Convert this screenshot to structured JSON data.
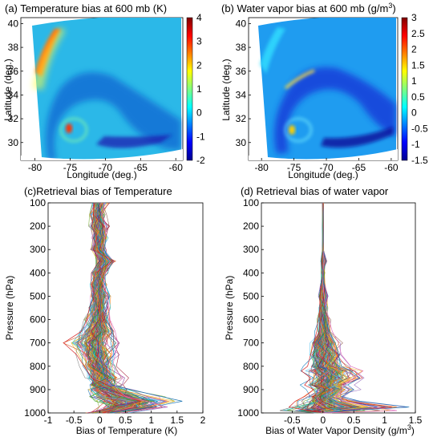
{
  "figure": {
    "panels": [
      {
        "id": "a",
        "title": "(a) Temperature bias at 600 mb (K)",
        "xlabel": "Longitude (deg.)",
        "ylabel": "Latitude (deg.)",
        "xticks": [
          "-80",
          "-75",
          "-70",
          "-65",
          "-60"
        ],
        "yticks": [
          "40",
          "38",
          "36",
          "34",
          "32",
          "30"
        ],
        "colorbar_ticks": [
          "4",
          "3",
          "2",
          "1",
          "0",
          "-1",
          "-2"
        ]
      },
      {
        "id": "b",
        "title_prefix": "(b) Water vapor bias at 600 mb (g/m",
        "title_sup": "3",
        "title_suffix": ")",
        "xlabel": "Longitude (deg.)",
        "ylabel": "Latitude (deg.)",
        "xticks": [
          "-80",
          "-75",
          "-70",
          "-65",
          "-60"
        ],
        "yticks": [
          "40",
          "38",
          "36",
          "34",
          "32",
          "30"
        ],
        "colorbar_ticks": [
          "3",
          "2.5",
          "2",
          "1.5",
          "1",
          "0.5",
          "0",
          "-0.5",
          "-1",
          "-1.5"
        ]
      },
      {
        "id": "c",
        "title": "(c)Retrieval bias of Temperature",
        "xlabel": "Bias of Temperature (K)",
        "ylabel": "Pressure (hPa)",
        "xticks": [
          "-1",
          "-0.5",
          "0",
          "0.5",
          "1",
          "1.5",
          "2"
        ],
        "yticks": [
          "100",
          "200",
          "300",
          "400",
          "500",
          "600",
          "700",
          "800",
          "900",
          "1000"
        ]
      },
      {
        "id": "d",
        "title": "(d) Retrieval bias of water vapor",
        "xlabel_prefix": "Bias of Water Vapor Density (g/m",
        "xlabel_sup": "3",
        "xlabel_suffix": ")",
        "ylabel": "Pressure (hPa)",
        "xticks": [
          "-0.5",
          "0",
          "0.5",
          "1",
          "1.5"
        ],
        "yticks": [
          "100",
          "200",
          "300",
          "400",
          "500",
          "600",
          "700",
          "800",
          "900",
          "1000"
        ]
      }
    ]
  },
  "chart_data": [
    {
      "type": "heatmap",
      "title": "(a) Temperature bias at 600 mb (K)",
      "xlabel": "Longitude (deg.)",
      "ylabel": "Latitude (deg.)",
      "xlim": [
        -82,
        -59
      ],
      "ylim": [
        28.5,
        40.5
      ],
      "colorbar": {
        "min": -2,
        "max": 4,
        "colormap": "jet"
      },
      "features": [
        {
          "kind": "warm coastal band",
          "lon": -79.5,
          "lat": 37,
          "value": 3.5
        },
        {
          "kind": "warm vortex core",
          "lon": -75.5,
          "lat": 31,
          "value": 3.0
        },
        {
          "kind": "background",
          "value": 0
        }
      ]
    },
    {
      "type": "heatmap",
      "title": "(b) Water vapor bias at 600 mb (g/m3)",
      "xlabel": "Longitude (deg.)",
      "ylabel": "Latitude (deg.)",
      "xlim": [
        -82,
        -59
      ],
      "ylim": [
        28.5,
        40.5
      ],
      "colorbar": {
        "min": -1.5,
        "max": 3,
        "colormap": "jet"
      },
      "features": [
        {
          "kind": "moist coastal band",
          "lon": -76.5,
          "lat": 36,
          "value": 1.5
        },
        {
          "kind": "moist vortex core",
          "lon": -75.5,
          "lat": 31,
          "value": 1.5
        },
        {
          "kind": "dry spiral band",
          "lon": -68,
          "lat": 32.5,
          "value": -1.2
        },
        {
          "kind": "background",
          "value": -0.3
        }
      ]
    },
    {
      "type": "line",
      "title": "(c)Retrieval bias of Temperature",
      "xlabel": "Bias of Temperature (K)",
      "ylabel": "Pressure (hPa)",
      "xlim": [
        -1,
        2
      ],
      "ylim": [
        1000,
        100
      ],
      "grid": false,
      "y": [
        100,
        150,
        200,
        250,
        300,
        350,
        400,
        450,
        500,
        550,
        600,
        650,
        700,
        750,
        800,
        850,
        880,
        900,
        930,
        950,
        975,
        1000
      ],
      "series": [
        {
          "values": [
            0.0,
            -0.05,
            0.0,
            0.03,
            -0.02,
            0.1,
            0.0,
            -0.03,
            0.0,
            0.02,
            0.03,
            0.0,
            -0.04,
            0.0,
            0.05,
            0.1,
            0.25,
            0.6,
            1.2,
            1.6,
            1.0,
            0.2
          ]
        },
        {
          "values": [
            -0.1,
            -0.12,
            -0.15,
            -0.05,
            -0.12,
            0.25,
            -0.08,
            -0.15,
            -0.1,
            -0.2,
            -0.25,
            -0.35,
            -0.7,
            -0.45,
            -0.3,
            -0.15,
            0.0,
            0.2,
            0.5,
            0.8,
            0.4,
            0.05
          ]
        },
        {
          "values": [
            0.1,
            0.05,
            0.12,
            0.1,
            0.05,
            0.2,
            0.1,
            0.08,
            0.15,
            0.18,
            0.2,
            0.3,
            0.35,
            0.3,
            0.25,
            0.45,
            0.3,
            0.35,
            0.5,
            0.9,
            1.3,
            0.4
          ]
        },
        {
          "values": [
            -0.05,
            -0.1,
            -0.08,
            -0.1,
            -0.08,
            0.05,
            -0.1,
            -0.08,
            -0.1,
            -0.12,
            -0.15,
            -0.2,
            -0.3,
            -0.25,
            -0.15,
            -0.1,
            -0.05,
            -0.1,
            0.0,
            0.15,
            0.5,
            -0.2
          ]
        }
      ]
    },
    {
      "type": "line",
      "title": "(d) Retrieval bias of water vapor",
      "xlabel": "Bias of Water Vapor Density (g/m3)",
      "ylabel": "Pressure (hPa)",
      "xlim": [
        -1,
        1.5
      ],
      "ylim": [
        1000,
        100
      ],
      "grid": false,
      "y": [
        100,
        200,
        300,
        350,
        400,
        450,
        500,
        550,
        600,
        650,
        700,
        750,
        800,
        820,
        850,
        880,
        900,
        930,
        950,
        975,
        990,
        1000
      ],
      "series": [
        {
          "values": [
            0.0,
            0.0,
            0.0,
            0.05,
            0.0,
            0.02,
            0.05,
            0.03,
            0.05,
            0.1,
            0.2,
            0.25,
            0.3,
            0.45,
            0.6,
            0.4,
            0.5,
            0.3,
            0.6,
            1.4,
            0.4,
            0.0
          ]
        },
        {
          "values": [
            0.0,
            0.0,
            0.0,
            -0.02,
            0.0,
            -0.02,
            -0.05,
            -0.05,
            -0.08,
            -0.1,
            -0.15,
            -0.2,
            -0.25,
            -0.35,
            -0.2,
            -0.3,
            -0.15,
            -0.3,
            -0.45,
            -0.55,
            -0.2,
            0.0
          ]
        },
        {
          "values": [
            0.0,
            0.0,
            0.0,
            0.02,
            0.0,
            0.0,
            0.02,
            0.05,
            0.1,
            0.15,
            0.25,
            0.3,
            0.45,
            0.65,
            0.5,
            0.35,
            0.3,
            0.2,
            0.35,
            0.8,
            1.2,
            0.0
          ]
        },
        {
          "values": [
            0.0,
            0.0,
            0.0,
            0.0,
            0.0,
            -0.01,
            -0.02,
            -0.03,
            -0.05,
            -0.05,
            -0.1,
            -0.12,
            -0.15,
            -0.1,
            -0.05,
            -0.1,
            0.0,
            -0.1,
            -0.2,
            -0.5,
            -0.7,
            0.0
          ]
        }
      ]
    }
  ]
}
